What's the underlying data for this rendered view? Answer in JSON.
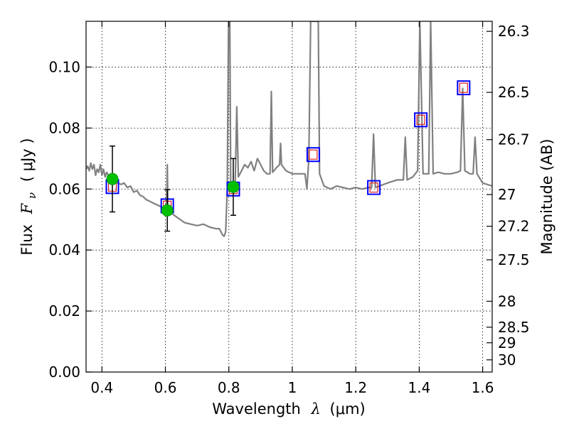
{
  "chart_data": {
    "type": "line",
    "xlabel_text": "Wavelength",
    "xlabel_symbol": "λ",
    "xlabel_unit": "(μm)",
    "ylabel_text": "Flux",
    "ylabel_symbol": "F",
    "ylabel_sub": "ν",
    "ylabel_unit": "( μJy )",
    "y2label": "Magnitude (AB)",
    "xlim": [
      0.35,
      1.63
    ],
    "ylim": [
      0.0,
      0.115
    ],
    "grid": true,
    "x_ticks": [
      {
        "value": 0.4,
        "label": "0.4"
      },
      {
        "value": 0.6,
        "label": "0.6"
      },
      {
        "value": 0.8,
        "label": "0.8"
      },
      {
        "value": 1.0,
        "label": "1"
      },
      {
        "value": 1.2,
        "label": "1.2"
      },
      {
        "value": 1.4,
        "label": "1.4"
      },
      {
        "value": 1.6,
        "label": "1.6"
      }
    ],
    "y_ticks": [
      {
        "value": 0.0,
        "label": "0.00"
      },
      {
        "value": 0.02,
        "label": "0.02"
      },
      {
        "value": 0.04,
        "label": "0.04"
      },
      {
        "value": 0.06,
        "label": "0.06"
      },
      {
        "value": 0.08,
        "label": "0.08"
      },
      {
        "value": 0.1,
        "label": "0.10"
      }
    ],
    "y2_ticks": [
      {
        "flux": 0.1117,
        "label": "26.3"
      },
      {
        "flux": 0.0917,
        "label": "26.5"
      },
      {
        "flux": 0.0762,
        "label": "26.7"
      },
      {
        "flux": 0.0582,
        "label": "27"
      },
      {
        "flux": 0.0478,
        "label": "27.2"
      },
      {
        "flux": 0.0368,
        "label": "27.5"
      },
      {
        "flux": 0.0232,
        "label": "28"
      },
      {
        "flux": 0.0147,
        "label": "28.5"
      },
      {
        "flux": 0.0096,
        "label": "29"
      },
      {
        "flux": 0.004,
        "label": "30"
      }
    ],
    "colors": {
      "spectrum": "#808080",
      "observed": "#00c000",
      "model_box": "#0000ff",
      "model_inner": "#dd2222"
    },
    "spectrum": [
      [
        0.35,
        0.0665
      ],
      [
        0.355,
        0.0675
      ],
      [
        0.36,
        0.066
      ],
      [
        0.365,
        0.0685
      ],
      [
        0.37,
        0.0665
      ],
      [
        0.375,
        0.068
      ],
      [
        0.38,
        0.0645
      ],
      [
        0.385,
        0.0665
      ],
      [
        0.39,
        0.0655
      ],
      [
        0.395,
        0.068
      ],
      [
        0.4,
        0.0645
      ],
      [
        0.405,
        0.0665
      ],
      [
        0.41,
        0.064
      ],
      [
        0.415,
        0.0655
      ],
      [
        0.42,
        0.0645
      ],
      [
        0.43,
        0.063
      ],
      [
        0.44,
        0.0625
      ],
      [
        0.45,
        0.062
      ],
      [
        0.46,
        0.0615
      ],
      [
        0.47,
        0.062
      ],
      [
        0.48,
        0.0605
      ],
      [
        0.49,
        0.061
      ],
      [
        0.5,
        0.059
      ],
      [
        0.51,
        0.0595
      ],
      [
        0.52,
        0.058
      ],
      [
        0.53,
        0.0575
      ],
      [
        0.54,
        0.0565
      ],
      [
        0.55,
        0.056
      ],
      [
        0.56,
        0.0555
      ],
      [
        0.57,
        0.055
      ],
      [
        0.58,
        0.0545
      ],
      [
        0.59,
        0.054
      ],
      [
        0.6,
        0.0535
      ],
      [
        0.604,
        0.054
      ],
      [
        0.606,
        0.068
      ],
      [
        0.608,
        0.054
      ],
      [
        0.62,
        0.052
      ],
      [
        0.64,
        0.0505
      ],
      [
        0.66,
        0.049
      ],
      [
        0.68,
        0.0485
      ],
      [
        0.7,
        0.048
      ],
      [
        0.72,
        0.0485
      ],
      [
        0.74,
        0.0475
      ],
      [
        0.76,
        0.047
      ],
      [
        0.77,
        0.047
      ],
      [
        0.78,
        0.045
      ],
      [
        0.785,
        0.0445
      ],
      [
        0.79,
        0.046
      ],
      [
        0.795,
        0.06
      ],
      [
        0.799,
        0.115
      ],
      [
        0.803,
        0.115
      ],
      [
        0.806,
        0.062
      ],
      [
        0.81,
        0.061
      ],
      [
        0.815,
        0.062
      ],
      [
        0.82,
        0.062
      ],
      [
        0.825,
        0.087
      ],
      [
        0.83,
        0.064
      ],
      [
        0.84,
        0.066
      ],
      [
        0.85,
        0.068
      ],
      [
        0.86,
        0.067
      ],
      [
        0.87,
        0.069
      ],
      [
        0.88,
        0.066
      ],
      [
        0.89,
        0.07
      ],
      [
        0.9,
        0.068
      ],
      [
        0.91,
        0.066
      ],
      [
        0.92,
        0.065
      ],
      [
        0.93,
        0.065
      ],
      [
        0.934,
        0.092
      ],
      [
        0.938,
        0.0655
      ],
      [
        0.95,
        0.067
      ],
      [
        0.96,
        0.068
      ],
      [
        0.963,
        0.075
      ],
      [
        0.966,
        0.068
      ],
      [
        0.98,
        0.066
      ],
      [
        1.0,
        0.065
      ],
      [
        1.02,
        0.065
      ],
      [
        1.04,
        0.065
      ],
      [
        1.046,
        0.06
      ],
      [
        1.052,
        0.07
      ],
      [
        1.058,
        0.115
      ],
      [
        1.082,
        0.115
      ],
      [
        1.086,
        0.065
      ],
      [
        1.1,
        0.061
      ],
      [
        1.12,
        0.06
      ],
      [
        1.14,
        0.061
      ],
      [
        1.16,
        0.0605
      ],
      [
        1.18,
        0.06
      ],
      [
        1.2,
        0.0605
      ],
      [
        1.22,
        0.06
      ],
      [
        1.24,
        0.0605
      ],
      [
        1.25,
        0.0605
      ],
      [
        1.256,
        0.078
      ],
      [
        1.262,
        0.0605
      ],
      [
        1.3,
        0.062
      ],
      [
        1.33,
        0.063
      ],
      [
        1.35,
        0.063
      ],
      [
        1.356,
        0.077
      ],
      [
        1.362,
        0.063
      ],
      [
        1.38,
        0.064
      ],
      [
        1.395,
        0.066
      ],
      [
        1.402,
        0.115
      ],
      [
        1.412,
        0.065
      ],
      [
        1.43,
        0.065
      ],
      [
        1.436,
        0.115
      ],
      [
        1.444,
        0.065
      ],
      [
        1.46,
        0.0655
      ],
      [
        1.48,
        0.065
      ],
      [
        1.5,
        0.065
      ],
      [
        1.52,
        0.0655
      ],
      [
        1.53,
        0.066
      ],
      [
        1.537,
        0.093
      ],
      [
        1.544,
        0.066
      ],
      [
        1.56,
        0.065
      ],
      [
        1.57,
        0.065
      ],
      [
        1.576,
        0.077
      ],
      [
        1.582,
        0.065
      ],
      [
        1.6,
        0.062
      ],
      [
        1.63,
        0.061
      ]
    ],
    "observed": [
      {
        "x": 0.433,
        "y": 0.0633,
        "err": 0.0108
      },
      {
        "x": 0.606,
        "y": 0.053,
        "err": 0.0068
      },
      {
        "x": 0.814,
        "y": 0.0607,
        "err": 0.0093
      }
    ],
    "model": [
      {
        "x": 0.433,
        "y": 0.0608
      },
      {
        "x": 0.606,
        "y": 0.0545
      },
      {
        "x": 0.814,
        "y": 0.06
      },
      {
        "x": 1.066,
        "y": 0.0713
      },
      {
        "x": 1.257,
        "y": 0.0605
      },
      {
        "x": 1.405,
        "y": 0.0827
      },
      {
        "x": 1.54,
        "y": 0.0932
      }
    ]
  }
}
